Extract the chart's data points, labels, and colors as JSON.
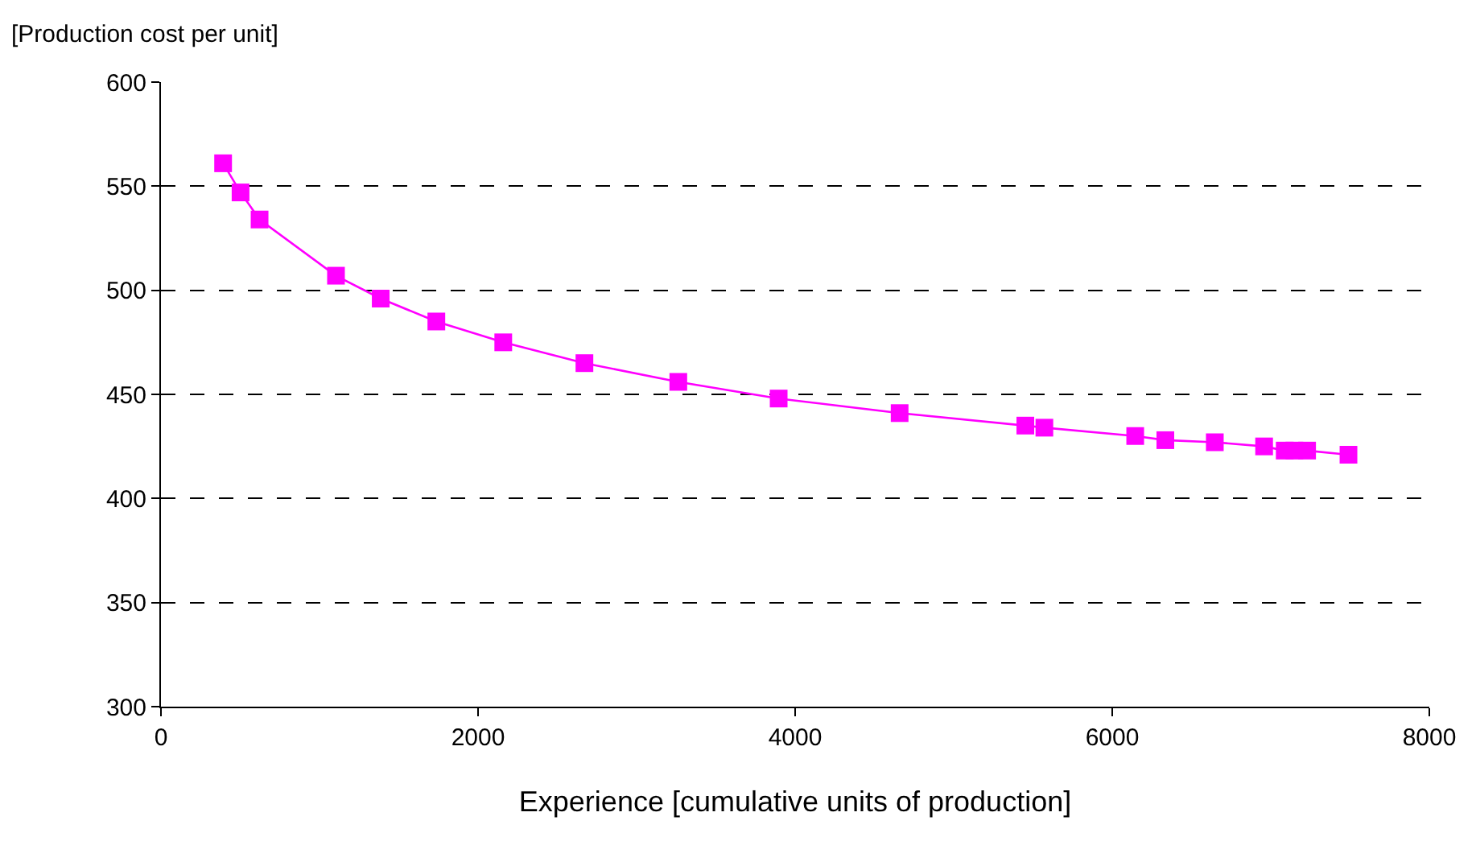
{
  "chart_data": {
    "type": "line",
    "xlabel": "Experience [cumulative units of production]",
    "ylabel": "[Production cost per unit]",
    "xlim": [
      0,
      8000
    ],
    "xticks": [
      0,
      2000,
      4000,
      6000,
      8000
    ],
    "ylim": [
      300,
      600
    ],
    "yticks": [
      300,
      350,
      400,
      450,
      500,
      550,
      600
    ],
    "grid": "y",
    "marker": "square",
    "line_style": "solid",
    "legend": false,
    "series": [
      {
        "color": "#ff00ff",
        "x": [
          392,
          502,
          622,
          1104,
          1386,
          1737,
          2159,
          2671,
          3263,
          3896,
          4659,
          5452,
          5572,
          6145,
          6335,
          6647,
          6958,
          7088,
          7149,
          7229,
          7490
        ],
        "values": [
          561,
          547,
          534,
          507,
          496,
          485,
          475,
          465,
          456,
          448,
          441,
          435,
          434,
          430,
          428,
          427,
          425,
          423,
          423,
          423,
          421
        ]
      }
    ]
  }
}
